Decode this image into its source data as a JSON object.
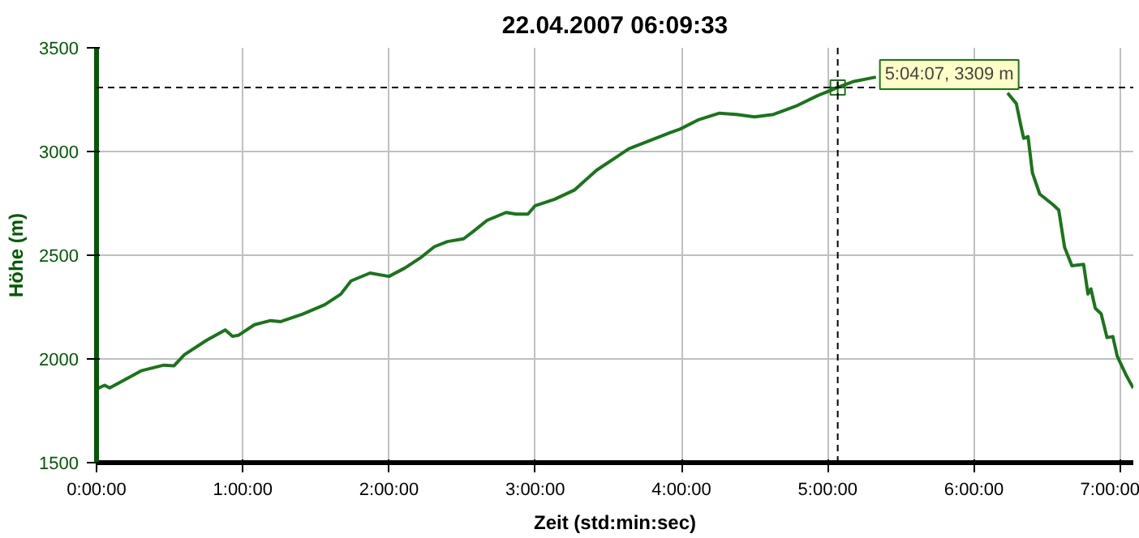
{
  "chart_data": {
    "type": "line",
    "title": "22.04.2007 06:09:33",
    "xlabel": "Zeit (std:min:sec)",
    "ylabel": "Höhe (m)",
    "x": [
      0,
      0.055,
      0.09,
      0.31,
      0.46,
      0.53,
      0.6,
      0.75,
      0.88,
      0.93,
      0.97,
      1.08,
      1.19,
      1.26,
      1.41,
      1.56,
      1.67,
      1.74,
      1.87,
      2.0,
      2.11,
      2.22,
      2.31,
      2.4,
      2.51,
      2.58,
      2.67,
      2.8,
      2.87,
      2.95,
      3.0,
      3.13,
      3.27,
      3.42,
      3.64,
      3.92,
      3.99,
      4.12,
      4.26,
      4.375,
      4.5,
      4.63,
      4.78,
      4.93,
      5.0686,
      5.18,
      5.33,
      5.8,
      6.23,
      6.29,
      6.32,
      6.34,
      6.37,
      6.4,
      6.45,
      6.54,
      6.58,
      6.62,
      6.67,
      6.75,
      6.78,
      6.8,
      6.83,
      6.87,
      6.91,
      6.95,
      6.98,
      7.04,
      7.09
    ],
    "series": [
      {
        "color": "#1a751a",
        "values": [
          1855,
          1873,
          1860,
          1944,
          1970,
          1967,
          2020,
          2089,
          2140,
          2109,
          2114,
          2165,
          2185,
          2180,
          2216,
          2261,
          2312,
          2376,
          2414,
          2398,
          2439,
          2490,
          2541,
          2566,
          2579,
          2617,
          2668,
          2706,
          2698,
          2698,
          2739,
          2769,
          2815,
          2910,
          3013,
          3090,
          3108,
          3154,
          3185,
          3179,
          3167,
          3179,
          3218,
          3269,
          3309,
          3338,
          3359,
          null,
          3282,
          3231,
          3128,
          3064,
          3072,
          2897,
          2795,
          2744,
          2718,
          2538,
          2449,
          2456,
          2313,
          2338,
          2244,
          2218,
          2103,
          2108,
          2013,
          1923,
          1859
        ]
      }
    ],
    "xlim": [
      0,
      7.09
    ],
    "ylim": [
      1500,
      3500
    ],
    "xticks": [
      {
        "value": 0,
        "label": "0:00:00"
      },
      {
        "value": 1,
        "label": "1:00:00"
      },
      {
        "value": 2,
        "label": "2:00:00"
      },
      {
        "value": 3,
        "label": "3:00:00"
      },
      {
        "value": 4,
        "label": "4:00:00"
      },
      {
        "value": 5,
        "label": "5:00:00"
      },
      {
        "value": 6,
        "label": "6:00:00"
      },
      {
        "value": 7,
        "label": "7:00:00"
      }
    ],
    "yticks": [
      1500,
      2000,
      2500,
      3000,
      3500
    ],
    "ref_lines": [
      {
        "axis": "x",
        "value": 5.0686,
        "color": "#000000",
        "line_style": "dashed"
      },
      {
        "axis": "y",
        "value": 3309,
        "color": "#000000",
        "line_style": "dashed"
      }
    ],
    "annotations": [
      {
        "text": "5:04:07, 3309 m",
        "x": 5.0686,
        "y": 3309
      }
    ],
    "grid": true,
    "line_style": "solid",
    "marker": "none"
  }
}
